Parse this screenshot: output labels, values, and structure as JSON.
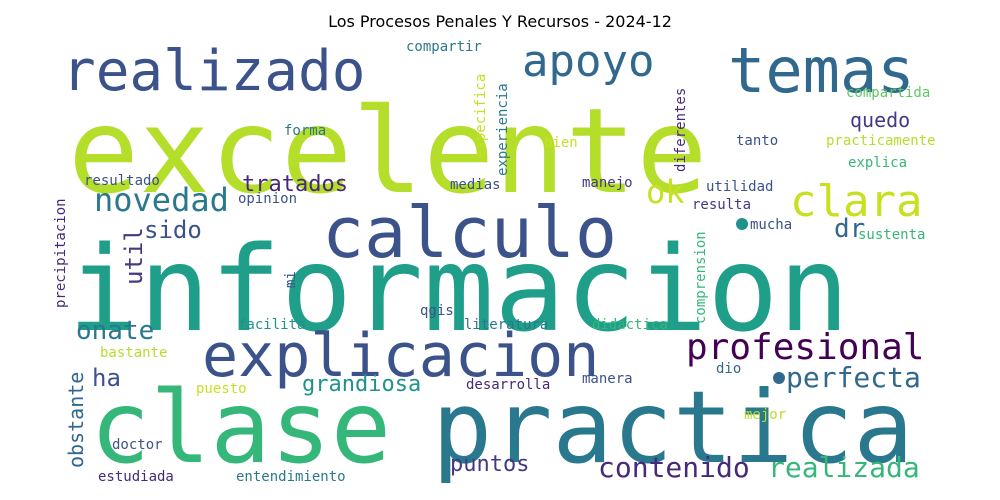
{
  "title": "Los Procesos Penales Y Recursos - 2024-12",
  "colors": {
    "lime": "#b5de2b",
    "yellow_lime": "#c8e020",
    "light_green": "#84d44b",
    "green": "#5ec962",
    "teal_green": "#35b779",
    "teal": "#1f9e89",
    "deep_teal": "#21918c",
    "cyan_blue": "#2a788e",
    "blue": "#31688e",
    "indigo": "#3b528b",
    "violet": "#443983",
    "purple": "#482878",
    "dark_purple": "#440154",
    "yellow": "#d8e219"
  },
  "words": [
    "excelente",
    "informacion",
    "clase",
    "practica",
    "calculo",
    "explicacion",
    "realizado",
    "temas",
    "apoyo",
    "clara",
    "novedad",
    "profesional",
    "perfecta",
    "contenido",
    "realizada",
    "tratados",
    "grandiosa",
    "puntos",
    "onate",
    "ha",
    "sido",
    "util",
    "ok",
    "dr",
    "quedo",
    "obstante",
    "compartida",
    "compartir",
    "especifica",
    "experiencia",
    "diferentes",
    "forma",
    "bien",
    "tanto",
    "practicamente",
    "explica",
    "resultado",
    "medias",
    "manejo",
    "utilidad",
    "opinion",
    "resulta",
    "mucha",
    "sustenta",
    "precipitacion",
    "comprension",
    "mi",
    "qgis",
    "facilita",
    "literatura",
    "didactica",
    "bastante",
    "puesto",
    "desarrolla",
    "manera",
    "dio",
    "mejor",
    "doctor",
    "estudiada",
    "entendimiento"
  ]
}
